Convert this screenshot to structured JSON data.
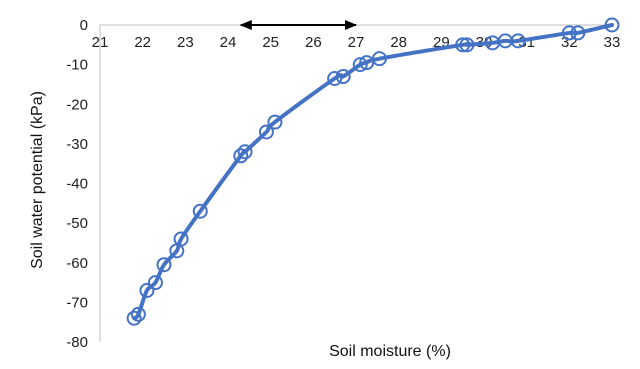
{
  "chart_data": {
    "type": "scatter",
    "title": "",
    "xlabel": "Soil moisture (%)",
    "ylabel": "Soil water potential (kPa)",
    "xlim": [
      21,
      33
    ],
    "ylim": [
      -80,
      0
    ],
    "x_ticks": [
      "21",
      "22",
      "23",
      "24",
      "25",
      "26",
      "27",
      "28",
      "29",
      "30",
      "31",
      "32",
      "33"
    ],
    "y_ticks": [
      "0",
      "-10",
      "-20",
      "-30",
      "-40",
      "-50",
      "-60",
      "-70",
      "-80"
    ],
    "x_axis_position": "top",
    "grid": false,
    "legend": "none",
    "series": [
      {
        "color": "#4472C4",
        "marker": "open-circle",
        "line": "smoothed",
        "points": [
          {
            "x": 21.8,
            "y": -74
          },
          {
            "x": 21.9,
            "y": -73
          },
          {
            "x": 22.1,
            "y": -67
          },
          {
            "x": 22.3,
            "y": -65
          },
          {
            "x": 22.5,
            "y": -60.5
          },
          {
            "x": 22.8,
            "y": -57
          },
          {
            "x": 22.9,
            "y": -54
          },
          {
            "x": 23.35,
            "y": -47
          },
          {
            "x": 24.3,
            "y": -33
          },
          {
            "x": 24.4,
            "y": -32
          },
          {
            "x": 24.9,
            "y": -27
          },
          {
            "x": 25.1,
            "y": -24.5
          },
          {
            "x": 26.5,
            "y": -13.5
          },
          {
            "x": 26.7,
            "y": -13
          },
          {
            "x": 27.1,
            "y": -10
          },
          {
            "x": 27.25,
            "y": -9.5
          },
          {
            "x": 27.55,
            "y": -8.5
          },
          {
            "x": 29.5,
            "y": -5
          },
          {
            "x": 29.6,
            "y": -5
          },
          {
            "x": 30.2,
            "y": -4.5
          },
          {
            "x": 30.5,
            "y": -4
          },
          {
            "x": 30.8,
            "y": -4
          },
          {
            "x": 32.0,
            "y": -2
          },
          {
            "x": 32.2,
            "y": -2
          },
          {
            "x": 33.0,
            "y": 0
          }
        ]
      }
    ],
    "annotations": [
      {
        "type": "double-arrow",
        "x_start": 24.3,
        "x_end": 27.0,
        "y": 0,
        "color": "#000000"
      }
    ]
  }
}
